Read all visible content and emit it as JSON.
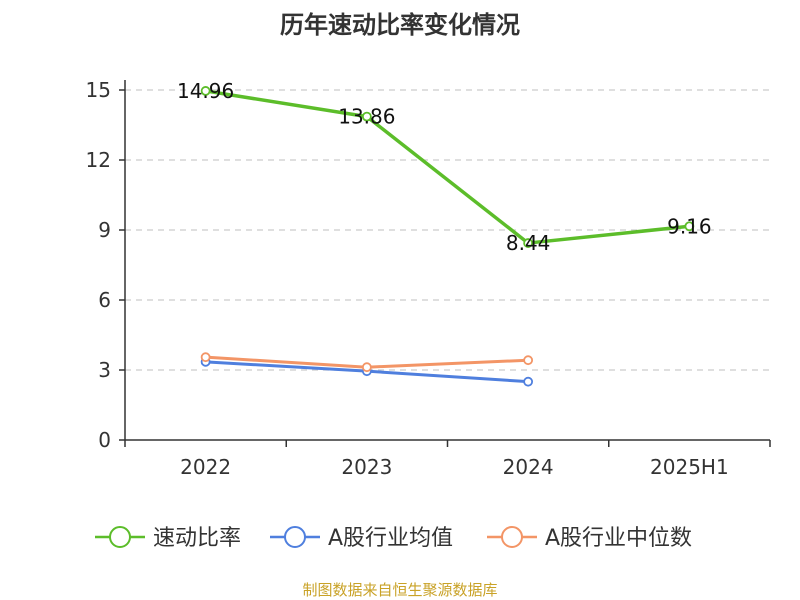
{
  "chart_data": {
    "type": "line",
    "title": "历年速动比率变化情况",
    "categories": [
      "2022",
      "2023",
      "2024",
      "2025H1"
    ],
    "ylim": [
      0,
      15
    ],
    "yticks": [
      0,
      3,
      6,
      9,
      12,
      15
    ],
    "grid": true,
    "legend_position": "bottom",
    "series": [
      {
        "name": "速动比率",
        "color": "#5cbd2a",
        "values": [
          14.96,
          13.86,
          8.44,
          9.16
        ],
        "labels": [
          "14.96",
          "13.86",
          "8.44",
          "9.16"
        ]
      },
      {
        "name": "A股行业均值",
        "color": "#4f7fde",
        "values": [
          3.35,
          2.95,
          2.5,
          null
        ]
      },
      {
        "name": "A股行业中位数",
        "color": "#f39566",
        "values": [
          3.55,
          3.12,
          3.42,
          null
        ]
      }
    ],
    "source": "制图数据来自恒生聚源数据库"
  }
}
